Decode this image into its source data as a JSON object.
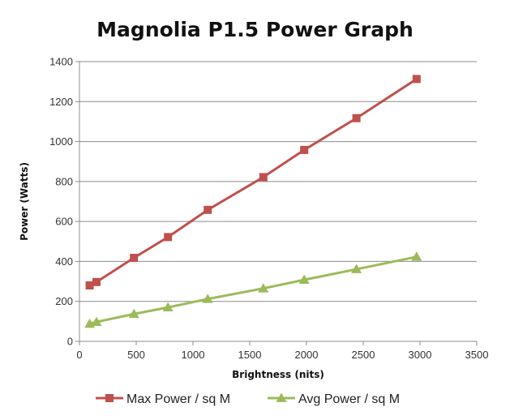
{
  "chart_data": {
    "type": "line",
    "title": "Magnolia P1.5 Power Graph",
    "xlabel": "Brightness (nits)",
    "ylabel": "Power (Watts)",
    "xlim": [
      0,
      3500
    ],
    "ylim": [
      0,
      1400
    ],
    "xticks": [
      0,
      500,
      1000,
      1500,
      2000,
      2500,
      3000,
      3500
    ],
    "yticks": [
      0,
      200,
      400,
      600,
      800,
      1000,
      1200,
      1400
    ],
    "grid": true,
    "legend_position": "bottom",
    "series": [
      {
        "name": "Max Power / sq M",
        "color": "#c0504d",
        "marker": "square",
        "points": [
          [
            90,
            280
          ],
          [
            150,
            297
          ],
          [
            480,
            418
          ],
          [
            780,
            522
          ],
          [
            1130,
            658
          ],
          [
            1620,
            822
          ],
          [
            1980,
            958
          ],
          [
            2440,
            1117
          ],
          [
            2970,
            1313
          ]
        ]
      },
      {
        "name": "Avg Power / sq M",
        "color": "#9bbb59",
        "marker": "triangle",
        "points": [
          [
            90,
            88
          ],
          [
            150,
            97
          ],
          [
            480,
            137
          ],
          [
            780,
            170
          ],
          [
            1130,
            212
          ],
          [
            1620,
            265
          ],
          [
            1980,
            308
          ],
          [
            2440,
            361
          ],
          [
            2970,
            423
          ]
        ]
      }
    ]
  }
}
